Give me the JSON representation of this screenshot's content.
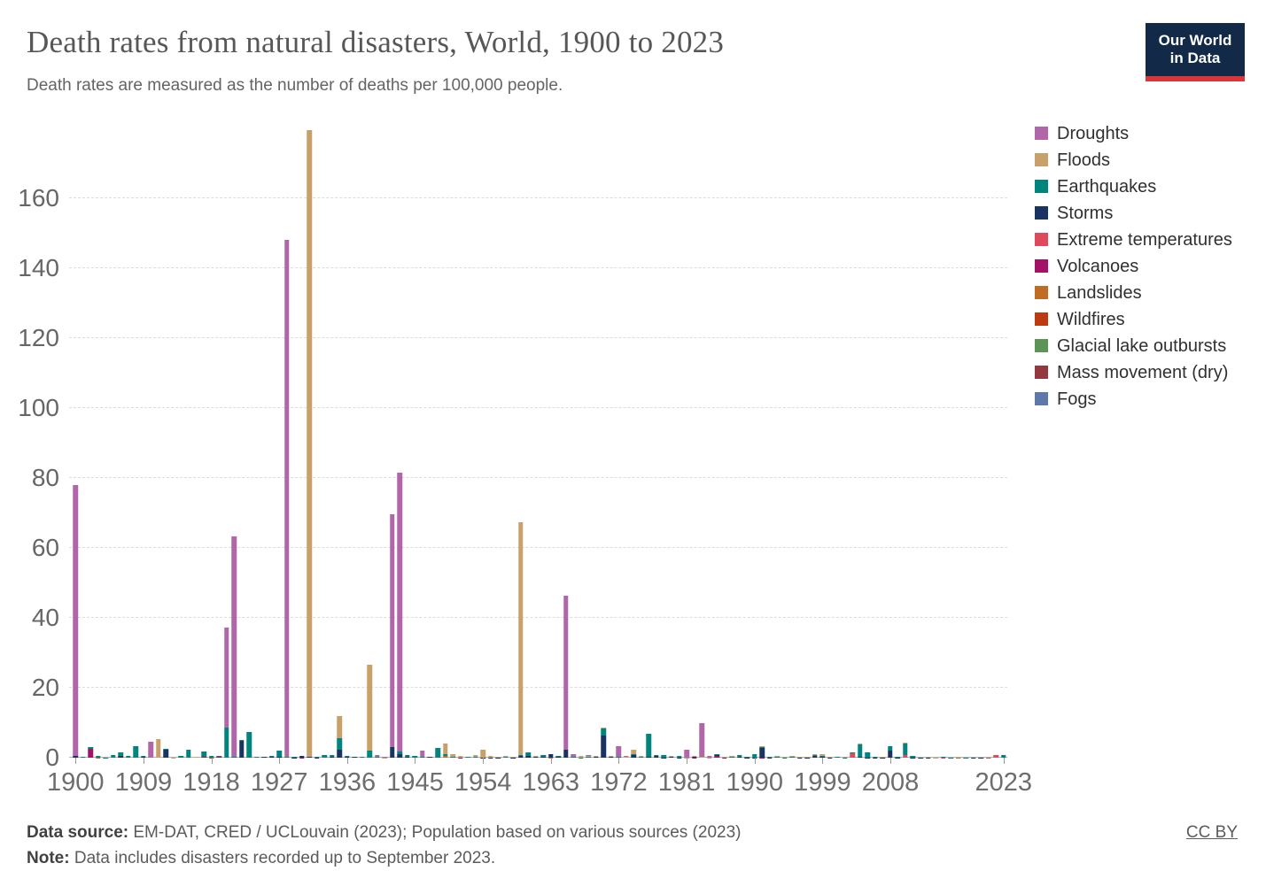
{
  "header": {
    "title": "Death rates from natural disasters, World, 1900 to 2023",
    "subtitle": "Death rates are measured as the number of deaths per 100,000 people."
  },
  "logo": {
    "line1": "Our World",
    "line2": "in Data",
    "bg": "#122947",
    "accent": "#dc3539"
  },
  "footer": {
    "source_label": "Data source:",
    "source_text": " EM-DAT, CRED / UCLouvain (2023); Population based on various sources (2023)",
    "note_label": "Note:",
    "note_text": " Data includes disasters recorded up to September 2023.",
    "license": "CC BY"
  },
  "chart_data": {
    "type": "bar",
    "stacked": true,
    "title": "Death rates from natural disasters, World, 1900 to 2023",
    "xlabel": "",
    "ylabel": "deaths per 100,000 people",
    "x_range": [
      1900,
      2023
    ],
    "ylim": [
      0,
      180
    ],
    "yticks": [
      0,
      20,
      40,
      60,
      80,
      100,
      120,
      140,
      160
    ],
    "xticks": [
      1900,
      1909,
      1918,
      1927,
      1936,
      1945,
      1954,
      1963,
      1972,
      1981,
      1990,
      1999,
      2008,
      2023
    ],
    "grid": "horizontal-dashed",
    "legend_position": "right",
    "stack_order": "reverse of legend order (first legend entry is topmost segment)",
    "categories": [
      {
        "name": "Droughts",
        "color": "#b066a8"
      },
      {
        "name": "Floods",
        "color": "#c8a06a"
      },
      {
        "name": "Earthquakes",
        "color": "#00847e"
      },
      {
        "name": "Storms",
        "color": "#1b3360"
      },
      {
        "name": "Extreme temperatures",
        "color": "#e0485c"
      },
      {
        "name": "Volcanoes",
        "color": "#a31267"
      },
      {
        "name": "Landslides",
        "color": "#c06c24"
      },
      {
        "name": "Wildfires",
        "color": "#bd3c0f"
      },
      {
        "name": "Glacial lake outbursts",
        "color": "#5c9456"
      },
      {
        "name": "Mass movement (dry)",
        "color": "#94383f"
      },
      {
        "name": "Fogs",
        "color": "#5e78a9"
      }
    ],
    "bars": {
      "1900": {
        "Droughts": 77.5,
        "Storms": 0.5
      },
      "1901": {
        "Earthquakes": 0.2
      },
      "1902": {
        "Volcanoes": 2.5,
        "Earthquakes": 0.5
      },
      "1903": {
        "Earthquakes": 0.3,
        "Landslides": 0.1
      },
      "1904": {
        "Earthquakes": 0.1
      },
      "1905": {
        "Earthquakes": 0.8
      },
      "1906": {
        "Earthquakes": 1.1,
        "Storms": 0.5
      },
      "1907": {
        "Earthquakes": 0.6
      },
      "1908": {
        "Earthquakes": 3.4
      },
      "1909": {
        "Earthquakes": 0.2,
        "Storms": 0.2
      },
      "1910": {
        "Droughts": 4.6
      },
      "1911": {
        "Floods": 5.3
      },
      "1912": {
        "Storms": 2.4,
        "Earthquakes": 0.2
      },
      "1913": {
        "Floods": 0.1
      },
      "1914": {
        "Earthquakes": 0.6
      },
      "1915": {
        "Earthquakes": 2.3
      },
      "1916": {
        "Floods": 0.2
      },
      "1917": {
        "Earthquakes": 1.6,
        "Volcanoes": 0.2
      },
      "1918": {
        "Earthquakes": 0.4,
        "Wildfires": 0.1
      },
      "1919": {
        "Volcanoes": 0.3,
        "Earthquakes": 0.1
      },
      "1920": {
        "Droughts": 28.8,
        "Earthquakes": 8.5
      },
      "1921": {
        "Droughts": 63.0,
        "Earthquakes": 0.3
      },
      "1922": {
        "Storms": 4.8,
        "Earthquakes": 0.2
      },
      "1923": {
        "Earthquakes": 7.4
      },
      "1924": {
        "Earthquakes": 0.2
      },
      "1925": {
        "Storms": 0.2,
        "Earthquakes": 0.1
      },
      "1926": {
        "Storms": 0.3,
        "Earthquakes": 0.1
      },
      "1927": {
        "Earthquakes": 1.9,
        "Storms": 0.2
      },
      "1928": {
        "Droughts": 147.8,
        "Earthquakes": 0.3
      },
      "1929": {
        "Earthquakes": 0.2,
        "Storms": 0.1
      },
      "1930": {
        "Storms": 0.3,
        "Volcanoes": 0.1
      },
      "1931": {
        "Floods": 179.2,
        "Storms": 0.3
      },
      "1932": {
        "Earthquakes": 0.2,
        "Storms": 0.1
      },
      "1933": {
        "Earthquakes": 0.8
      },
      "1934": {
        "Earthquakes": 0.5,
        "Storms": 0.2
      },
      "1935": {
        "Floods": 6.5,
        "Earthquakes": 3.3,
        "Storms": 2.2
      },
      "1936": {
        "Storms": 0.3,
        "Earthquakes": 0.1
      },
      "1937": {
        "Storms": 0.2,
        "Floods": 0.1
      },
      "1938": {
        "Earthquakes": 0.2,
        "Floods": 0.1
      },
      "1939": {
        "Floods": 24.4,
        "Earthquakes": 2.1
      },
      "1940": {
        "Droughts": 0.6,
        "Earthquakes": 0.2
      },
      "1941": {
        "Droughts": 0.2,
        "Floods": 0.1
      },
      "1942": {
        "Droughts": 66.7,
        "Storms": 3.0
      },
      "1943": {
        "Droughts": 79.7,
        "Storms": 1.0,
        "Earthquakes": 0.8
      },
      "1944": {
        "Earthquakes": 0.5,
        "Storms": 0.2
      },
      "1945": {
        "Earthquakes": 0.4,
        "Floods": 0.2
      },
      "1946": {
        "Droughts": 1.8,
        "Earthquakes": 0.3
      },
      "1947": {
        "Storms": 0.2,
        "Earthquakes": 0.1
      },
      "1948": {
        "Earthquakes": 2.8
      },
      "1949": {
        "Floods": 3.2,
        "Landslides": 0.5,
        "Earthquakes": 0.4
      },
      "1950": {
        "Floods": 0.7,
        "Earthquakes": 0.3
      },
      "1951": {
        "Floods": 0.4,
        "Volcanoes": 0.1
      },
      "1952": {
        "Earthquakes": 0.2,
        "Floods": 0.1
      },
      "1953": {
        "Floods": 0.6,
        "Earthquakes": 0.2
      },
      "1954": {
        "Floods": 2.2,
        "Storms": 0.1
      },
      "1955": {
        "Floods": 0.3,
        "Storms": 0.1
      },
      "1956": {
        "Floods": 0.2,
        "Storms": 0.1
      },
      "1957": {
        "Earthquakes": 0.2,
        "Floods": 0.2
      },
      "1958": {
        "Floods": 0.2,
        "Storms": 0.1
      },
      "1959": {
        "Floods": 66.5,
        "Storms": 0.6,
        "Earthquakes": 0.2
      },
      "1960": {
        "Earthquakes": 1.0,
        "Storms": 0.4
      },
      "1961": {
        "Storms": 0.3,
        "Floods": 0.2
      },
      "1962": {
        "Earthquakes": 0.5,
        "Storms": 0.2
      },
      "1963": {
        "Storms": 0.8,
        "Landslides": 0.1,
        "Earthquakes": 0.1
      },
      "1964": {
        "Storms": 0.3,
        "Earthquakes": 0.1,
        "Floods": 0.1
      },
      "1965": {
        "Droughts": 44.0,
        "Storms": 2.3
      },
      "1966": {
        "Droughts": 0.8,
        "Earthquakes": 0.2
      },
      "1967": {
        "Floods": 0.3,
        "Earthquakes": 0.1
      },
      "1968": {
        "Floods": 0.3,
        "Earthquakes": 0.3,
        "Droughts": 0.1
      },
      "1969": {
        "Storms": 0.3,
        "Floods": 0.2
      },
      "1970": {
        "Storms": 6.4,
        "Earthquakes": 1.9,
        "Floods": 0.2
      },
      "1971": {
        "Storms": 0.3,
        "Floods": 0.2
      },
      "1972": {
        "Droughts": 3.0,
        "Earthquakes": 0.2
      },
      "1973": {
        "Droughts": 0.3,
        "Floods": 0.3
      },
      "1974": {
        "Floods": 1.3,
        "Storms": 0.7,
        "Earthquakes": 0.2
      },
      "1975": {
        "Earthquakes": 0.3,
        "Floods": 0.2
      },
      "1976": {
        "Earthquakes": 6.6,
        "Storms": 0.2
      },
      "1977": {
        "Storms": 0.6,
        "Earthquakes": 0.2
      },
      "1978": {
        "Earthquakes": 0.7,
        "Storms": 0.1
      },
      "1979": {
        "Storms": 0.2,
        "Floods": 0.2
      },
      "1980": {
        "Earthquakes": 0.3,
        "Storms": 0.1
      },
      "1981": {
        "Droughts": 2.2,
        "Floods": 0.1
      },
      "1982": {
        "Floods": 0.3,
        "Storms": 0.1,
        "Volcanoes": 0.1
      },
      "1983": {
        "Droughts": 9.8,
        "Floods": 0.2
      },
      "1984": {
        "Droughts": 0.3,
        "Floods": 0.1
      },
      "1985": {
        "Volcanoes": 0.5,
        "Earthquakes": 0.2,
        "Storms": 0.2
      },
      "1986": {
        "Volcanoes": 0.1,
        "Floods": 0.1
      },
      "1987": {
        "Earthquakes": 0.3,
        "Floods": 0.1
      },
      "1988": {
        "Earthquakes": 0.5,
        "Storms": 0.2,
        "Floods": 0.1
      },
      "1989": {
        "Storms": 0.1,
        "Earthquakes": 0.1
      },
      "1990": {
        "Earthquakes": 0.8,
        "Floods": 0.2,
        "Storms": 0.1
      },
      "1991": {
        "Storms": 2.6,
        "Earthquakes": 0.3,
        "Floods": 0.2,
        "Volcanoes": 0.1
      },
      "1992": {
        "Earthquakes": 0.1,
        "Floods": 0.1,
        "Storms": 0.1
      },
      "1993": {
        "Earthquakes": 0.2,
        "Floods": 0.2
      },
      "1994": {
        "Earthquakes": 0.1,
        "Floods": 0.1
      },
      "1995": {
        "Earthquakes": 0.3,
        "Floods": 0.1
      },
      "1996": {
        "Floods": 0.2,
        "Storms": 0.1
      },
      "1997": {
        "Floods": 0.1,
        "Storms": 0.1,
        "Droughts": 0.1
      },
      "1998": {
        "Storms": 0.5,
        "Floods": 0.2,
        "Earthquakes": 0.2
      },
      "1999": {
        "Floods": 0.5,
        "Earthquakes": 0.3,
        "Storms": 0.2
      },
      "2000": {
        "Floods": 0.1,
        "Storms": 0.1
      },
      "2001": {
        "Earthquakes": 0.35
      },
      "2002": {
        "Earthquakes": 0.1,
        "Floods": 0.1
      },
      "2003": {
        "Extreme temperatures": 1.2,
        "Earthquakes": 0.45
      },
      "2004": {
        "Earthquakes": 3.6,
        "Floods": 0.3,
        "Storms": 0.2
      },
      "2005": {
        "Earthquakes": 1.3,
        "Storms": 0.1,
        "Floods": 0.1
      },
      "2006": {
        "Earthquakes": 0.1,
        "Storms": 0.1
      },
      "2007": {
        "Storms": 0.1,
        "Floods": 0.1
      },
      "2008": {
        "Storms": 2.1,
        "Earthquakes": 1.3
      },
      "2009": {
        "Earthquakes": 0.1,
        "Storms": 0.1
      },
      "2010": {
        "Earthquakes": 3.3,
        "Extreme temperatures": 0.85,
        "Floods": 0.1
      },
      "2011": {
        "Earthquakes": 0.3,
        "Storms": 0.1,
        "Floods": 0.1
      },
      "2012": {
        "Storms": 0.1
      },
      "2013": {
        "Storms": 0.1,
        "Floods": 0.1
      },
      "2014": {
        "Floods": 0.05
      },
      "2015": {
        "Earthquakes": 0.15,
        "Extreme temperatures": 0.05
      },
      "2016": {
        "Earthquakes": 0.05,
        "Floods": 0.05
      },
      "2017": {
        "Storms": 0.05,
        "Landslides": 0.05
      },
      "2018": {
        "Earthquakes": 0.1
      },
      "2019": {
        "Storms": 0.05,
        "Floods": 0.05
      },
      "2020": {
        "Floods": 0.05,
        "Storms": 0.05
      },
      "2021": {
        "Earthquakes": 0.05,
        "Extreme temperatures": 0.05
      },
      "2022": {
        "Extreme temperatures": 0.8,
        "Floods": 0.05
      },
      "2023": {
        "Earthquakes": 0.7,
        "Floods": 0.15
      }
    }
  }
}
